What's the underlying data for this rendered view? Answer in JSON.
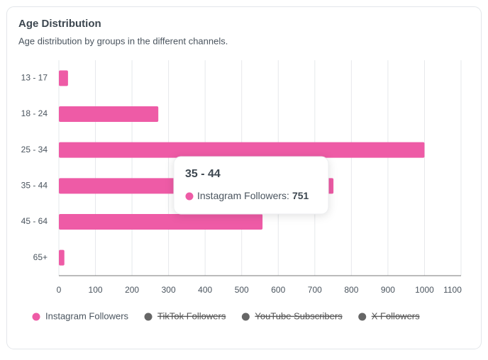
{
  "chart_data": {
    "type": "hbar",
    "title": "Age Distribution",
    "subtitle": "Age distribution by groups in the different channels.",
    "categories": [
      "13 - 17",
      "18 - 24",
      "25 - 34",
      "35 - 44",
      "45 - 64",
      "65+"
    ],
    "series": [
      {
        "name": "Instagram Followers",
        "color": "#ee5ba6",
        "values": [
          25,
          272,
          1000,
          751,
          557,
          15
        ]
      },
      {
        "name": "TikTok Followers",
        "color": "#666666",
        "hidden": true
      },
      {
        "name": "YouTube Subscribers",
        "color": "#666666",
        "hidden": true
      },
      {
        "name": "X Followers",
        "color": "#666666",
        "hidden": true
      }
    ],
    "xlim": [
      0,
      1100
    ],
    "xticks": [
      0,
      100,
      200,
      300,
      400,
      500,
      600,
      700,
      800,
      900,
      1000,
      1100
    ],
    "grid": true,
    "legend": "bottom",
    "tooltip": {
      "category_index": 3,
      "series_index": 0,
      "separator": ":"
    }
  }
}
